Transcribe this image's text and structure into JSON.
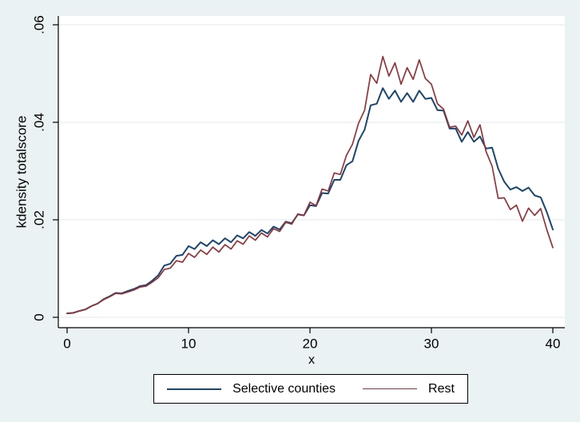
{
  "colors": {
    "background": "#eaf2f3",
    "plot_background": "#ffffff",
    "gridline": "#e6eef0",
    "axis": "#000000",
    "navy": "#1a476f",
    "maroon": "#90353b"
  },
  "chart_data": {
    "type": "line",
    "title": "",
    "xlabel": "x",
    "ylabel": "kdensity totalscore",
    "xlim": [
      0,
      40
    ],
    "ylim": [
      0,
      0.06
    ],
    "grid": "horizontal",
    "legend_position": "bottom",
    "x_ticks": [
      {
        "value": 0,
        "label": "0"
      },
      {
        "value": 10,
        "label": "10"
      },
      {
        "value": 20,
        "label": "20"
      },
      {
        "value": 30,
        "label": "30"
      },
      {
        "value": 40,
        "label": "40"
      }
    ],
    "y_ticks": [
      {
        "value": 0,
        "label": "0"
      },
      {
        "value": 0.02,
        "label": ".02"
      },
      {
        "value": 0.04,
        "label": ".04"
      },
      {
        "value": 0.06,
        "label": ".06"
      }
    ],
    "series": [
      {
        "name": "Selective counties",
        "color": "#1a476f",
        "line_width": 2,
        "points": [
          [
            0,
            0.0008
          ],
          [
            0.5,
            0.0009
          ],
          [
            1,
            0.0013
          ],
          [
            1.5,
            0.0016
          ],
          [
            2,
            0.0023
          ],
          [
            2.5,
            0.0028
          ],
          [
            3,
            0.0037
          ],
          [
            3.5,
            0.0043
          ],
          [
            4,
            0.005
          ],
          [
            4.5,
            0.0049
          ],
          [
            5,
            0.0054
          ],
          [
            5.5,
            0.0058
          ],
          [
            6,
            0.0064
          ],
          [
            6.5,
            0.0066
          ],
          [
            7,
            0.0075
          ],
          [
            7.5,
            0.0086
          ],
          [
            8,
            0.0106
          ],
          [
            8.5,
            0.011
          ],
          [
            9,
            0.0126
          ],
          [
            9.5,
            0.0128
          ],
          [
            10,
            0.0146
          ],
          [
            10.5,
            0.014
          ],
          [
            11,
            0.0154
          ],
          [
            11.5,
            0.0146
          ],
          [
            12,
            0.0158
          ],
          [
            12.5,
            0.015
          ],
          [
            13,
            0.0162
          ],
          [
            13.5,
            0.0154
          ],
          [
            14,
            0.0168
          ],
          [
            14.5,
            0.0162
          ],
          [
            15,
            0.0175
          ],
          [
            15.5,
            0.0167
          ],
          [
            16,
            0.0179
          ],
          [
            16.5,
            0.0172
          ],
          [
            17,
            0.0186
          ],
          [
            17.5,
            0.018
          ],
          [
            18,
            0.0196
          ],
          [
            18.5,
            0.0193
          ],
          [
            19,
            0.0211
          ],
          [
            19.5,
            0.0209
          ],
          [
            20,
            0.023
          ],
          [
            20.5,
            0.0228
          ],
          [
            21,
            0.0255
          ],
          [
            21.5,
            0.0254
          ],
          [
            22,
            0.0282
          ],
          [
            22.5,
            0.0282
          ],
          [
            23,
            0.0312
          ],
          [
            23.5,
            0.032
          ],
          [
            24,
            0.0362
          ],
          [
            24.5,
            0.0385
          ],
          [
            25,
            0.0435
          ],
          [
            25.5,
            0.0438
          ],
          [
            26,
            0.047
          ],
          [
            26.5,
            0.0448
          ],
          [
            27,
            0.0465
          ],
          [
            27.5,
            0.0442
          ],
          [
            28,
            0.046
          ],
          [
            28.5,
            0.0442
          ],
          [
            29,
            0.0465
          ],
          [
            29.5,
            0.0448
          ],
          [
            30,
            0.045
          ],
          [
            30.5,
            0.0425
          ],
          [
            31,
            0.0424
          ],
          [
            31.5,
            0.0387
          ],
          [
            32,
            0.0387
          ],
          [
            32.5,
            0.036
          ],
          [
            33,
            0.038
          ],
          [
            33.5,
            0.036
          ],
          [
            34,
            0.0371
          ],
          [
            34.5,
            0.0346
          ],
          [
            35,
            0.0348
          ],
          [
            35.5,
            0.0305
          ],
          [
            36,
            0.0278
          ],
          [
            36.5,
            0.0262
          ],
          [
            37,
            0.0267
          ],
          [
            37.5,
            0.0259
          ],
          [
            38,
            0.0266
          ],
          [
            38.5,
            0.025
          ],
          [
            39,
            0.0246
          ],
          [
            39.5,
            0.0216
          ],
          [
            40,
            0.018
          ]
        ]
      },
      {
        "name": "Rest",
        "color": "#90353b",
        "line_width": 1.7,
        "points": [
          [
            0,
            0.0008
          ],
          [
            0.5,
            0.0009
          ],
          [
            1,
            0.0013
          ],
          [
            1.5,
            0.0016
          ],
          [
            2,
            0.0023
          ],
          [
            2.5,
            0.0028
          ],
          [
            3,
            0.0036
          ],
          [
            3.5,
            0.0042
          ],
          [
            4,
            0.0049
          ],
          [
            4.5,
            0.0048
          ],
          [
            5,
            0.0052
          ],
          [
            5.5,
            0.0056
          ],
          [
            6,
            0.0062
          ],
          [
            6.5,
            0.0064
          ],
          [
            7,
            0.0072
          ],
          [
            7.5,
            0.0081
          ],
          [
            8,
            0.0098
          ],
          [
            8.5,
            0.0101
          ],
          [
            9,
            0.0116
          ],
          [
            9.5,
            0.0113
          ],
          [
            10,
            0.0131
          ],
          [
            10.5,
            0.0123
          ],
          [
            11,
            0.0138
          ],
          [
            11.5,
            0.0129
          ],
          [
            12,
            0.0144
          ],
          [
            12.5,
            0.0134
          ],
          [
            13,
            0.0149
          ],
          [
            13.5,
            0.014
          ],
          [
            14,
            0.0157
          ],
          [
            14.5,
            0.015
          ],
          [
            15,
            0.0167
          ],
          [
            15.5,
            0.0158
          ],
          [
            16,
            0.0173
          ],
          [
            16.5,
            0.0165
          ],
          [
            17,
            0.0182
          ],
          [
            17.5,
            0.0176
          ],
          [
            18,
            0.0195
          ],
          [
            18.5,
            0.0191
          ],
          [
            19,
            0.0212
          ],
          [
            19.5,
            0.0209
          ],
          [
            20,
            0.0236
          ],
          [
            20.5,
            0.0229
          ],
          [
            21,
            0.0263
          ],
          [
            21.5,
            0.0259
          ],
          [
            22,
            0.0296
          ],
          [
            22.5,
            0.0293
          ],
          [
            23,
            0.0332
          ],
          [
            23.5,
            0.0355
          ],
          [
            24,
            0.0398
          ],
          [
            24.5,
            0.0425
          ],
          [
            25,
            0.0498
          ],
          [
            25.5,
            0.048
          ],
          [
            26,
            0.0535
          ],
          [
            26.5,
            0.0495
          ],
          [
            27,
            0.0522
          ],
          [
            27.5,
            0.0478
          ],
          [
            28,
            0.0512
          ],
          [
            28.5,
            0.0488
          ],
          [
            29,
            0.0528
          ],
          [
            29.5,
            0.049
          ],
          [
            30,
            0.0478
          ],
          [
            30.5,
            0.0438
          ],
          [
            31,
            0.0427
          ],
          [
            31.5,
            0.039
          ],
          [
            32,
            0.0392
          ],
          [
            32.5,
            0.0374
          ],
          [
            33,
            0.0403
          ],
          [
            33.5,
            0.0369
          ],
          [
            34,
            0.0395
          ],
          [
            34.5,
            0.034
          ],
          [
            35,
            0.031
          ],
          [
            35.5,
            0.0244
          ],
          [
            36,
            0.0245
          ],
          [
            36.5,
            0.0221
          ],
          [
            37,
            0.023
          ],
          [
            37.5,
            0.0197
          ],
          [
            38,
            0.0224
          ],
          [
            38.5,
            0.0209
          ],
          [
            39,
            0.0223
          ],
          [
            39.5,
            0.018
          ],
          [
            40,
            0.0143
          ]
        ]
      }
    ]
  }
}
